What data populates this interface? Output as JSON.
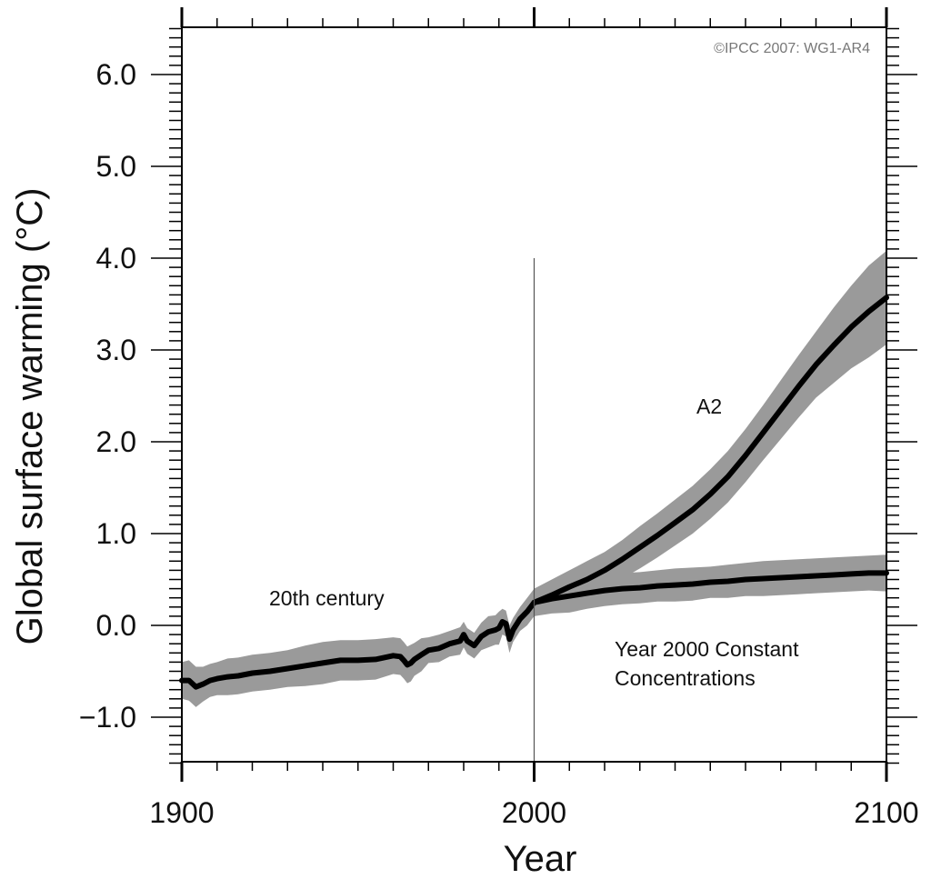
{
  "chart_data": {
    "type": "line",
    "title": "",
    "credit": "©IPCC 2007: WG1-AR4",
    "xlabel": "Year",
    "ylabel": "Global surface warming (°C)",
    "xlim": [
      1900,
      2100
    ],
    "ylim": [
      -1.5,
      6.5
    ],
    "x_ticks": [
      1900,
      2000,
      2100
    ],
    "x_tick_labels": [
      "1900",
      "2000",
      "2100"
    ],
    "y_ticks": [
      -1.0,
      0.0,
      1.0,
      2.0,
      3.0,
      4.0,
      5.0,
      6.0
    ],
    "y_tick_labels": [
      "−1.0",
      "0.0",
      "1.0",
      "2.0",
      "3.0",
      "4.0",
      "5.0",
      "6.0"
    ],
    "vertical_marker": {
      "x": 2000,
      "y_range": [
        -1.5,
        4.0
      ]
    },
    "annotations": [
      {
        "text": "A2",
        "x": 2050,
        "y": 2.4
      },
      {
        "text": "20th century",
        "x": 1925,
        "y": 0.3
      },
      {
        "text": "Year 2000 Constant",
        "x": 2022,
        "y": -0.25
      },
      {
        "text": "Concentrations",
        "x": 2022,
        "y": -0.55
      }
    ],
    "series": [
      {
        "label": "20th century",
        "color": "#000000",
        "band_color": "#9a9a9a",
        "x": [
          1900,
          1902,
          1904,
          1906,
          1908,
          1910,
          1913,
          1916,
          1920,
          1925,
          1930,
          1935,
          1940,
          1945,
          1950,
          1955,
          1960,
          1962,
          1963,
          1964,
          1965,
          1966,
          1968,
          1970,
          1973,
          1976,
          1979,
          1980,
          1981,
          1983,
          1985,
          1987,
          1989,
          1990,
          1991,
          1992,
          1993,
          1994,
          1996,
          1998,
          2000
        ],
        "y": [
          -0.6,
          -0.6,
          -0.67,
          -0.64,
          -0.6,
          -0.58,
          -0.56,
          -0.55,
          -0.52,
          -0.5,
          -0.47,
          -0.44,
          -0.41,
          -0.38,
          -0.38,
          -0.37,
          -0.33,
          -0.34,
          -0.38,
          -0.43,
          -0.41,
          -0.37,
          -0.32,
          -0.27,
          -0.25,
          -0.2,
          -0.17,
          -0.1,
          -0.17,
          -0.22,
          -0.12,
          -0.07,
          -0.05,
          -0.03,
          0.04,
          0.02,
          -0.15,
          -0.05,
          0.07,
          0.15,
          0.25
        ],
        "band_upper": [
          -0.4,
          -0.38,
          -0.45,
          -0.45,
          -0.42,
          -0.4,
          -0.36,
          -0.35,
          -0.32,
          -0.3,
          -0.27,
          -0.22,
          -0.18,
          -0.16,
          -0.16,
          -0.15,
          -0.13,
          -0.14,
          -0.18,
          -0.23,
          -0.21,
          -0.19,
          -0.14,
          -0.13,
          -0.1,
          -0.06,
          -0.02,
          0.04,
          -0.03,
          -0.08,
          0.03,
          0.1,
          0.11,
          0.15,
          0.18,
          0.16,
          0.0,
          0.08,
          0.2,
          0.3,
          0.4
        ]
      },
      {
        "label": "A2",
        "color": "#000000",
        "band_color": "#9a9a9a",
        "x": [
          2000,
          2005,
          2010,
          2015,
          2020,
          2025,
          2030,
          2035,
          2040,
          2045,
          2050,
          2055,
          2060,
          2065,
          2070,
          2075,
          2080,
          2085,
          2090,
          2095,
          2100
        ],
        "y": [
          0.25,
          0.33,
          0.42,
          0.5,
          0.6,
          0.72,
          0.85,
          0.98,
          1.12,
          1.26,
          1.43,
          1.62,
          1.85,
          2.1,
          2.35,
          2.6,
          2.84,
          3.05,
          3.25,
          3.42,
          3.57
        ],
        "band_upper": [
          0.4,
          0.5,
          0.6,
          0.7,
          0.8,
          0.93,
          1.08,
          1.22,
          1.37,
          1.52,
          1.7,
          1.9,
          2.14,
          2.4,
          2.67,
          2.94,
          3.2,
          3.46,
          3.7,
          3.92,
          4.08
        ]
      },
      {
        "label": "Year 2000 Constant Concentrations",
        "color": "#000000",
        "band_color": "#9a9a9a",
        "x": [
          2000,
          2005,
          2010,
          2015,
          2020,
          2025,
          2030,
          2035,
          2040,
          2045,
          2050,
          2055,
          2060,
          2065,
          2070,
          2075,
          2080,
          2085,
          2090,
          2095,
          2100
        ],
        "y": [
          0.25,
          0.29,
          0.32,
          0.35,
          0.38,
          0.4,
          0.41,
          0.43,
          0.44,
          0.45,
          0.47,
          0.48,
          0.5,
          0.51,
          0.52,
          0.53,
          0.54,
          0.55,
          0.56,
          0.57,
          0.57
        ],
        "band_upper": [
          0.4,
          0.45,
          0.5,
          0.52,
          0.55,
          0.57,
          0.58,
          0.6,
          0.62,
          0.63,
          0.64,
          0.66,
          0.68,
          0.7,
          0.71,
          0.72,
          0.73,
          0.74,
          0.75,
          0.76,
          0.77
        ]
      }
    ]
  }
}
